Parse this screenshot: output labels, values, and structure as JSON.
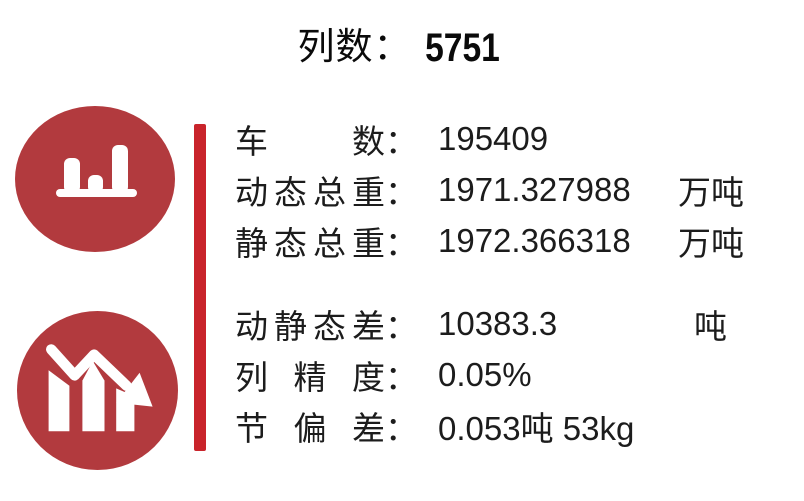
{
  "title": {
    "label": "列数",
    "colon": "：",
    "value": "5751"
  },
  "punct": {
    "colon": "："
  },
  "stats": {
    "group1": [
      {
        "label": "车数",
        "value": "195409",
        "unit": ""
      },
      {
        "label": "动态总重",
        "value": "1971.327988",
        "unit": "万吨"
      },
      {
        "label": "静态总重",
        "value": "1972.366318",
        "unit": "万吨"
      }
    ],
    "group2": [
      {
        "label": "动静态差",
        "value": "10383.3",
        "unit": "吨"
      },
      {
        "label": "列精度",
        "value": "0.05%",
        "unit": ""
      },
      {
        "label": "节偏差",
        "value": "0.053吨 53kg",
        "unit": ""
      }
    ]
  },
  "icons": {
    "top": "bar-chart-icon",
    "bottom": "declining-trend-icon"
  },
  "colors": {
    "circle": "#b23a3e",
    "divider": "#c9242b",
    "text": "#1c1c1c",
    "icon": "#ffffff"
  }
}
